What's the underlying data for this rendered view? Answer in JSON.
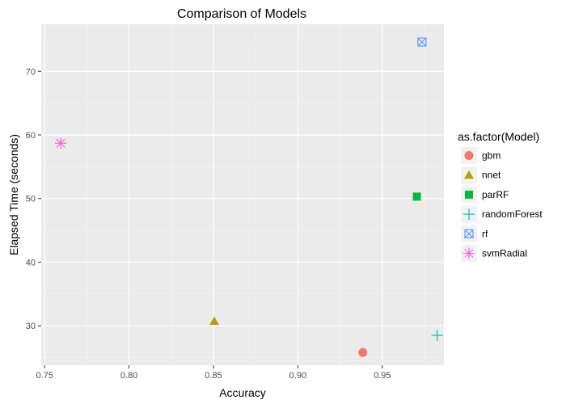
{
  "chart_data": {
    "type": "scatter",
    "title": "Comparison of Models",
    "xlabel": "Accuracy",
    "ylabel": "Elapsed Time (seconds)",
    "xlim": [
      0.748,
      0.9865
    ],
    "ylim": [
      23.8,
      77.4
    ],
    "xticks": [
      0.75,
      0.8,
      0.85,
      0.9,
      0.95
    ],
    "xtick_labels": [
      "0.75",
      "0.80",
      "0.85",
      "0.90",
      "0.95"
    ],
    "yticks": [
      30,
      40,
      50,
      60,
      70
    ],
    "ytick_labels": [
      "30",
      "40",
      "50",
      "60",
      "70"
    ],
    "grid": true,
    "legend": {
      "title": "as.factor(Model)",
      "position": "right"
    },
    "series": [
      {
        "name": "gbm",
        "shape": "circle",
        "color": "#F8766D",
        "x": 0.9385,
        "y": 25.8
      },
      {
        "name": "nnet",
        "shape": "triangle",
        "color": "#B79F00",
        "x": 0.8505,
        "y": 30.7
      },
      {
        "name": "parRF",
        "shape": "square",
        "color": "#00BA38",
        "x": 0.9705,
        "y": 50.3
      },
      {
        "name": "randomForest",
        "shape": "plus",
        "color": "#00BFC4",
        "x": 0.9825,
        "y": 28.5
      },
      {
        "name": "rf",
        "shape": "boxcross",
        "color": "#619CFF",
        "x": 0.9735,
        "y": 74.6
      },
      {
        "name": "svmRadial",
        "shape": "asterisk",
        "color": "#F564E3",
        "x": 0.7595,
        "y": 58.7
      }
    ]
  }
}
